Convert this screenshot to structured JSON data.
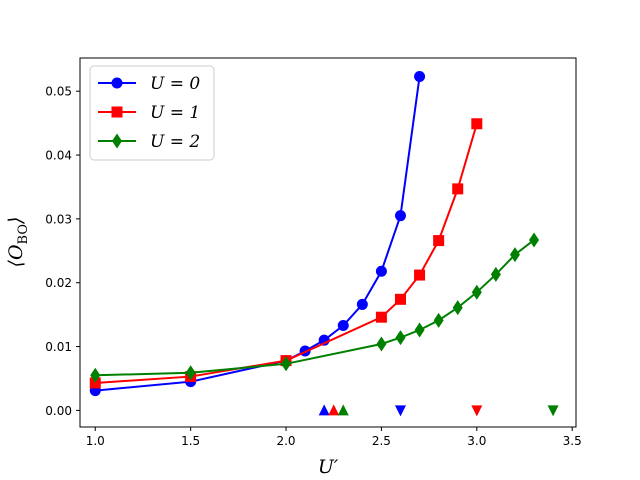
{
  "chart_data": {
    "type": "line",
    "xlabel": "U′",
    "ylabel": "⟨O_BO⟩",
    "xlim": [
      0.92,
      3.52
    ],
    "ylim": [
      -0.0026,
      0.0552
    ],
    "x_ticks": [
      1.0,
      1.5,
      2.0,
      2.5,
      3.0,
      3.5
    ],
    "x_tick_labels": [
      "1.0",
      "1.5",
      "2.0",
      "2.5",
      "3.0",
      "3.5"
    ],
    "y_ticks": [
      0.0,
      0.01,
      0.02,
      0.03,
      0.04,
      0.05
    ],
    "y_tick_labels": [
      "0.00",
      "0.01",
      "0.02",
      "0.03",
      "0.04",
      "0.05"
    ],
    "grid": false,
    "legend_position": "top-left",
    "series": [
      {
        "name": "U = 0",
        "color": "#0000ff",
        "marker": "circle",
        "x": [
          1.0,
          1.5,
          2.0,
          2.1,
          2.2,
          2.3,
          2.4,
          2.5,
          2.6,
          2.7
        ],
        "y": [
          0.0031,
          0.0045,
          0.0078,
          0.0093,
          0.011,
          0.0133,
          0.0166,
          0.0218,
          0.0305,
          0.0523
        ]
      },
      {
        "name": "U = 1",
        "color": "#ff0000",
        "marker": "square",
        "x": [
          1.0,
          1.5,
          2.0,
          2.5,
          2.6,
          2.7,
          2.8,
          2.9,
          3.0
        ],
        "y": [
          0.0043,
          0.0053,
          0.0078,
          0.0146,
          0.0174,
          0.0212,
          0.0266,
          0.0347,
          0.0449
        ]
      },
      {
        "name": "U = 2",
        "color": "#008000",
        "marker": "diamond",
        "x": [
          1.0,
          1.5,
          2.0,
          2.5,
          2.6,
          2.7,
          2.8,
          2.9,
          3.0,
          3.1,
          3.2,
          3.3
        ],
        "y": [
          0.0055,
          0.0059,
          0.0073,
          0.0104,
          0.0114,
          0.0126,
          0.0141,
          0.0161,
          0.0185,
          0.0213,
          0.0244,
          0.0267
        ]
      }
    ],
    "threshold_markers": [
      {
        "x": 2.2,
        "y": 0.0,
        "shape": "triangle-up",
        "color": "#0000ff"
      },
      {
        "x": 2.25,
        "y": 0.0,
        "shape": "triangle-up",
        "color": "#ff0000"
      },
      {
        "x": 2.3,
        "y": 0.0,
        "shape": "triangle-up",
        "color": "#008000"
      },
      {
        "x": 2.6,
        "y": 0.0,
        "shape": "triangle-down",
        "color": "#0000ff"
      },
      {
        "x": 3.0,
        "y": 0.0,
        "shape": "triangle-down",
        "color": "#ff0000"
      },
      {
        "x": 3.4,
        "y": 0.0,
        "shape": "triangle-down",
        "color": "#008000"
      }
    ],
    "legend": {
      "entries": [
        {
          "label": "U = 0",
          "color": "#0000ff",
          "marker": "circle"
        },
        {
          "label": "U = 1",
          "color": "#ff0000",
          "marker": "square"
        },
        {
          "label": "U = 2",
          "color": "#008000",
          "marker": "diamond"
        }
      ]
    }
  }
}
